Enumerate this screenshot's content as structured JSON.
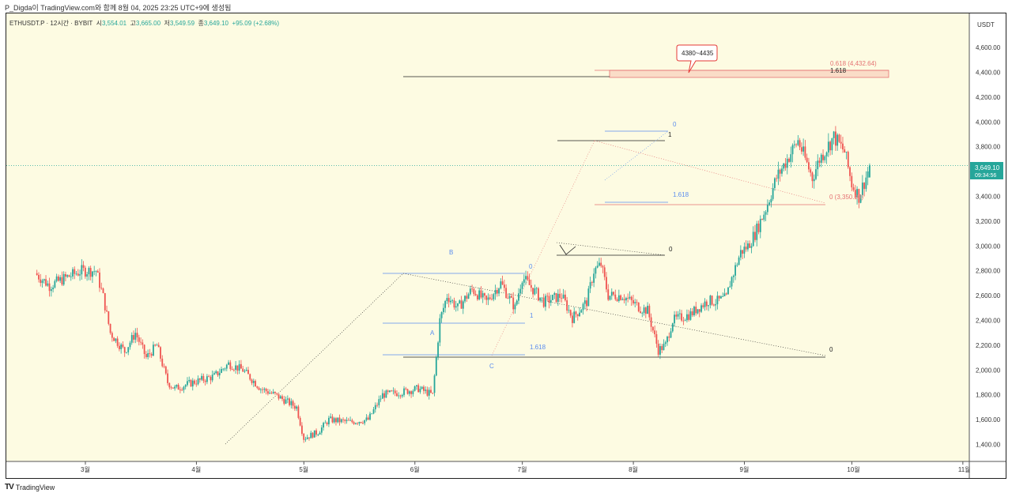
{
  "header": {
    "caption": "P_Digda이 TradingView.com와 함께 8월 04, 2025 23:25 UTC+9에 생성됨"
  },
  "legend": {
    "symbol": "ETHUSDT.P · 12시간 · BYBIT",
    "open_label": "시",
    "open": "3,554.01",
    "high_label": "고",
    "high": "3,665.00",
    "low_label": "저",
    "low": "3,549.59",
    "close_label": "종",
    "close": "3,649.10",
    "change": "+95.09 (+2.68%)"
  },
  "price_axis": {
    "currency": "USDT",
    "current_price": "3,649.10",
    "countdown": "09:34:56"
  },
  "footer": {
    "logo": "TV",
    "brand": "TradingView"
  },
  "colors": {
    "up": "#26a69a",
    "down": "#ef5350",
    "background": "#fdfbe2",
    "fib_blue": "#5b8def",
    "fib_red": "#e57373",
    "price_badge": "#26a69a"
  },
  "annotations": {
    "target_callout": "4380~4435",
    "fib_top_0618": "0.618 (4,432.64)",
    "fib_top_1618": "1.618",
    "fib_red_0": "0 (3,350.00)",
    "upper_0": "0",
    "upper_1": "1",
    "upper_1618": "1.618",
    "mid_0": "0",
    "wave_b": "B",
    "wave_a": "A",
    "wave_c": "C",
    "lower_0": "0",
    "lower_1": "1",
    "lower_1618": "1.618",
    "far_0": "0"
  },
  "chart_data": {
    "type": "candlestick",
    "symbol": "ETHUSDT.P",
    "interval": "12시간",
    "exchange": "BYBIT",
    "x_tick_labels": [
      "3월",
      "4월",
      "5월",
      "6월",
      "7월",
      "8월",
      "9월",
      "10월",
      "11월"
    ],
    "y_ticks": [
      1400,
      1600,
      1800,
      2000,
      2200,
      2400,
      2600,
      2800,
      3000,
      3200,
      3400,
      3600,
      3800,
      4000,
      4200,
      4400,
      4600
    ],
    "y_range": [
      1300,
      4750
    ],
    "x_range_days": [
      -14,
      292
    ],
    "last_candle": {
      "open": 3554.01,
      "high": 3665.0,
      "low": 3549.59,
      "close": 3649.1
    },
    "price_path": [
      [
        -14,
        2780
      ],
      [
        -10,
        2680
      ],
      [
        -5,
        2750
      ],
      [
        -1,
        2800
      ],
      [
        3,
        2800
      ],
      [
        5,
        2590
      ],
      [
        7,
        2300
      ],
      [
        11,
        2150
      ],
      [
        14,
        2300
      ],
      [
        17,
        2100
      ],
      [
        20,
        2200
      ],
      [
        23,
        1900
      ],
      [
        25,
        1850
      ],
      [
        30,
        1900
      ],
      [
        36,
        1950
      ],
      [
        40,
        2050
      ],
      [
        44,
        2000
      ],
      [
        49,
        1850
      ],
      [
        53,
        1800
      ],
      [
        59,
        1700
      ],
      [
        61,
        1450
      ],
      [
        65,
        1500
      ],
      [
        68,
        1600
      ],
      [
        74,
        1580
      ],
      [
        79,
        1600
      ],
      [
        83,
        1800
      ],
      [
        88,
        1820
      ],
      [
        93,
        1850
      ],
      [
        97,
        1800
      ],
      [
        99,
        2400
      ],
      [
        101,
        2600
      ],
      [
        104,
        2500
      ],
      [
        108,
        2650
      ],
      [
        112,
        2550
      ],
      [
        116,
        2700
      ],
      [
        120,
        2500
      ],
      [
        122,
        2750
      ],
      [
        128,
        2550
      ],
      [
        133,
        2600
      ],
      [
        136,
        2420
      ],
      [
        140,
        2550
      ],
      [
        142,
        2800
      ],
      [
        144,
        2850
      ],
      [
        146,
        2600
      ],
      [
        150,
        2600
      ],
      [
        155,
        2500
      ],
      [
        157,
        2480
      ],
      [
        160,
        2160
      ],
      [
        162,
        2200
      ],
      [
        164,
        2400
      ],
      [
        169,
        2450
      ],
      [
        171,
        2500
      ],
      [
        174,
        2560
      ],
      [
        176,
        2550
      ],
      [
        179,
        2580
      ],
      [
        180,
        2700
      ],
      [
        183,
        2950
      ],
      [
        185,
        3000
      ],
      [
        187,
        3100
      ],
      [
        190,
        3300
      ],
      [
        193,
        3550
      ],
      [
        196,
        3700
      ],
      [
        199,
        3850
      ],
      [
        203,
        3550
      ],
      [
        205,
        3700
      ],
      [
        209,
        3880
      ],
      [
        212,
        3760
      ],
      [
        214,
        3500
      ],
      [
        216,
        3400
      ],
      [
        218,
        3554
      ],
      [
        219,
        3649.1
      ]
    ],
    "fib_levels": [
      {
        "label": "0.618 (4,432.64)",
        "value": 4432.64
      },
      {
        "label": "0 (3,350.00)",
        "value": 3350.0
      }
    ],
    "target_range": [
      4380,
      4435
    ]
  }
}
